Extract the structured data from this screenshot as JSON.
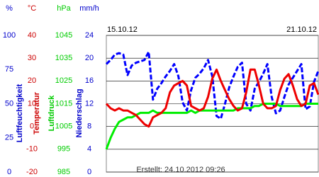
{
  "chart_data": {
    "type": "line",
    "x_labels": [
      "15.10.12",
      "21.10.12"
    ],
    "footer": "Erstellt: 24.10.2012 09:26",
    "grid": true,
    "grid_axis": 3,
    "axes": [
      {
        "unit": "%",
        "label": "Luftfeuchtigkeit",
        "color": "#0000cc",
        "ylim": [
          0,
          100
        ],
        "yticks": [
          0,
          25,
          50,
          75,
          100
        ]
      },
      {
        "unit": "°C",
        "label": "Temperatur",
        "color": "#cc0000",
        "ylim": [
          -20,
          40
        ],
        "yticks": [
          -20,
          -10,
          0,
          10,
          20,
          30,
          40
        ]
      },
      {
        "unit": "hPa",
        "label": "Luftdruck",
        "color": "#00cc00",
        "ylim": [
          985,
          1045
        ],
        "yticks": [
          985,
          995,
          1005,
          1015,
          1025,
          1035,
          1045
        ]
      },
      {
        "unit": "mm/h",
        "label": "Niederschlag",
        "color": "#0000cc",
        "ylim": [
          0,
          24
        ],
        "yticks": [
          0,
          4,
          8,
          12,
          16,
          20,
          24
        ]
      }
    ],
    "series": [
      {
        "axis": 0,
        "color": "#0000ff",
        "dashed": true,
        "values": [
          79,
          82,
          86,
          87,
          86,
          71,
          78,
          80,
          81,
          82,
          88,
          53,
          61,
          65,
          70,
          74,
          79,
          70,
          51,
          45,
          60,
          69,
          72,
          76,
          82,
          70,
          41,
          39,
          50,
          62,
          70,
          77,
          80,
          50,
          45,
          61,
          66,
          72,
          79,
          55,
          43,
          45,
          55,
          64,
          69,
          74,
          79,
          46,
          48,
          66,
          74
        ]
      },
      {
        "axis": 2,
        "color": "#00ee00",
        "dashed": false,
        "values": [
          995,
          1000,
          1004,
          1007,
          1008,
          1009,
          1009,
          1010,
          1011,
          1011,
          1011,
          1012,
          1011,
          1011,
          1011,
          1011,
          1011,
          1011,
          1011,
          1011,
          1012,
          1011,
          1012,
          1012,
          1012,
          1012,
          1012,
          1012,
          1012,
          1012,
          1012,
          1013,
          1013,
          1013,
          1013,
          1014,
          1014,
          1015,
          1015,
          1015,
          1015,
          1014,
          1014,
          1014,
          1014,
          1014,
          1014,
          1015,
          1015,
          1015,
          1015
        ]
      },
      {
        "axis": 1,
        "color": "#ee0000",
        "dashed": false,
        "values": [
          10,
          8,
          7,
          8,
          7,
          7,
          6,
          5,
          3,
          1,
          0,
          4,
          5,
          6,
          8,
          15,
          18,
          19,
          20,
          18,
          9,
          8,
          7,
          8,
          13,
          21,
          25,
          20,
          16,
          12,
          9,
          7,
          8,
          15,
          25,
          25,
          18,
          10,
          8,
          8,
          9,
          16,
          21,
          23,
          18,
          12,
          9,
          10,
          18,
          19,
          14
        ]
      }
    ]
  }
}
